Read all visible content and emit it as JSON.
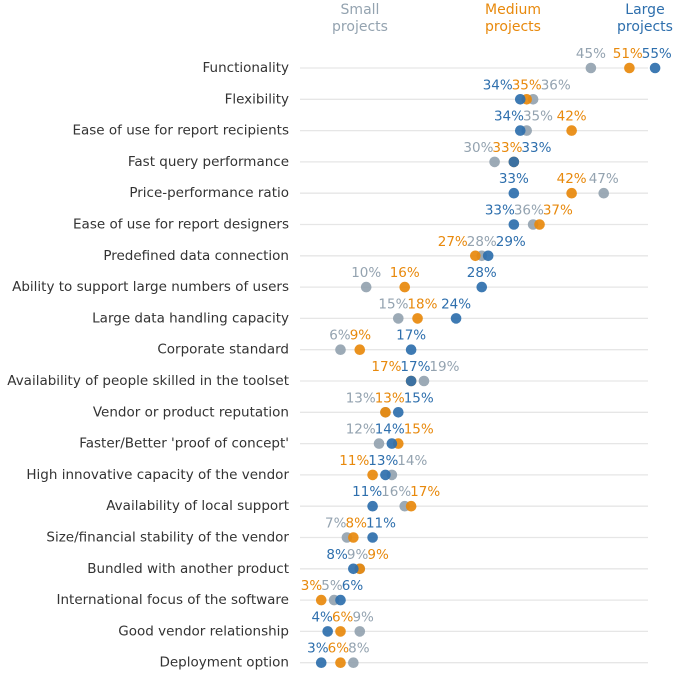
{
  "chart_data": {
    "type": "scatter",
    "subtype": "dot-plot",
    "title": "",
    "xlabel": "",
    "ylabel": "",
    "xlim": [
      0,
      55
    ],
    "grid": true,
    "legend": "top",
    "categories": [
      "Functionality",
      "Flexibility",
      "Ease of use for report recipients",
      "Fast query performance",
      "Price-performance ratio",
      "Ease of use for report designers",
      "Predefined data connection",
      "Ability to support large numbers of users",
      "Large data handling capacity",
      "Corporate standard",
      "Availability of people skilled in the toolset",
      "Vendor or product reputation",
      "Faster/Better 'proof of concept'",
      "High innovative capacity of the vendor",
      "Availability of local support",
      "Size/financial stability of the vendor",
      "Bundled with another product",
      "International focus of the software",
      "Good vendor relationship",
      "Deployment option"
    ],
    "series": [
      {
        "name": "Small projects",
        "color": "#94a3b0",
        "values": [
          45,
          36,
          35,
          30,
          47,
          36,
          28,
          10,
          15,
          6,
          19,
          13,
          12,
          14,
          16,
          7,
          9,
          5,
          9,
          8
        ]
      },
      {
        "name": "Medium projects",
        "color": "#e8890c",
        "values": [
          51,
          35,
          42,
          33,
          42,
          37,
          27,
          16,
          18,
          9,
          17,
          13,
          15,
          11,
          17,
          8,
          9,
          3,
          6,
          6
        ]
      },
      {
        "name": "Large projects",
        "color": "#2e6fad",
        "values": [
          55,
          34,
          34,
          33,
          33,
          33,
          29,
          28,
          24,
          17,
          17,
          15,
          14,
          13,
          11,
          11,
          8,
          6,
          4,
          3
        ]
      }
    ],
    "value_suffix": "%"
  }
}
